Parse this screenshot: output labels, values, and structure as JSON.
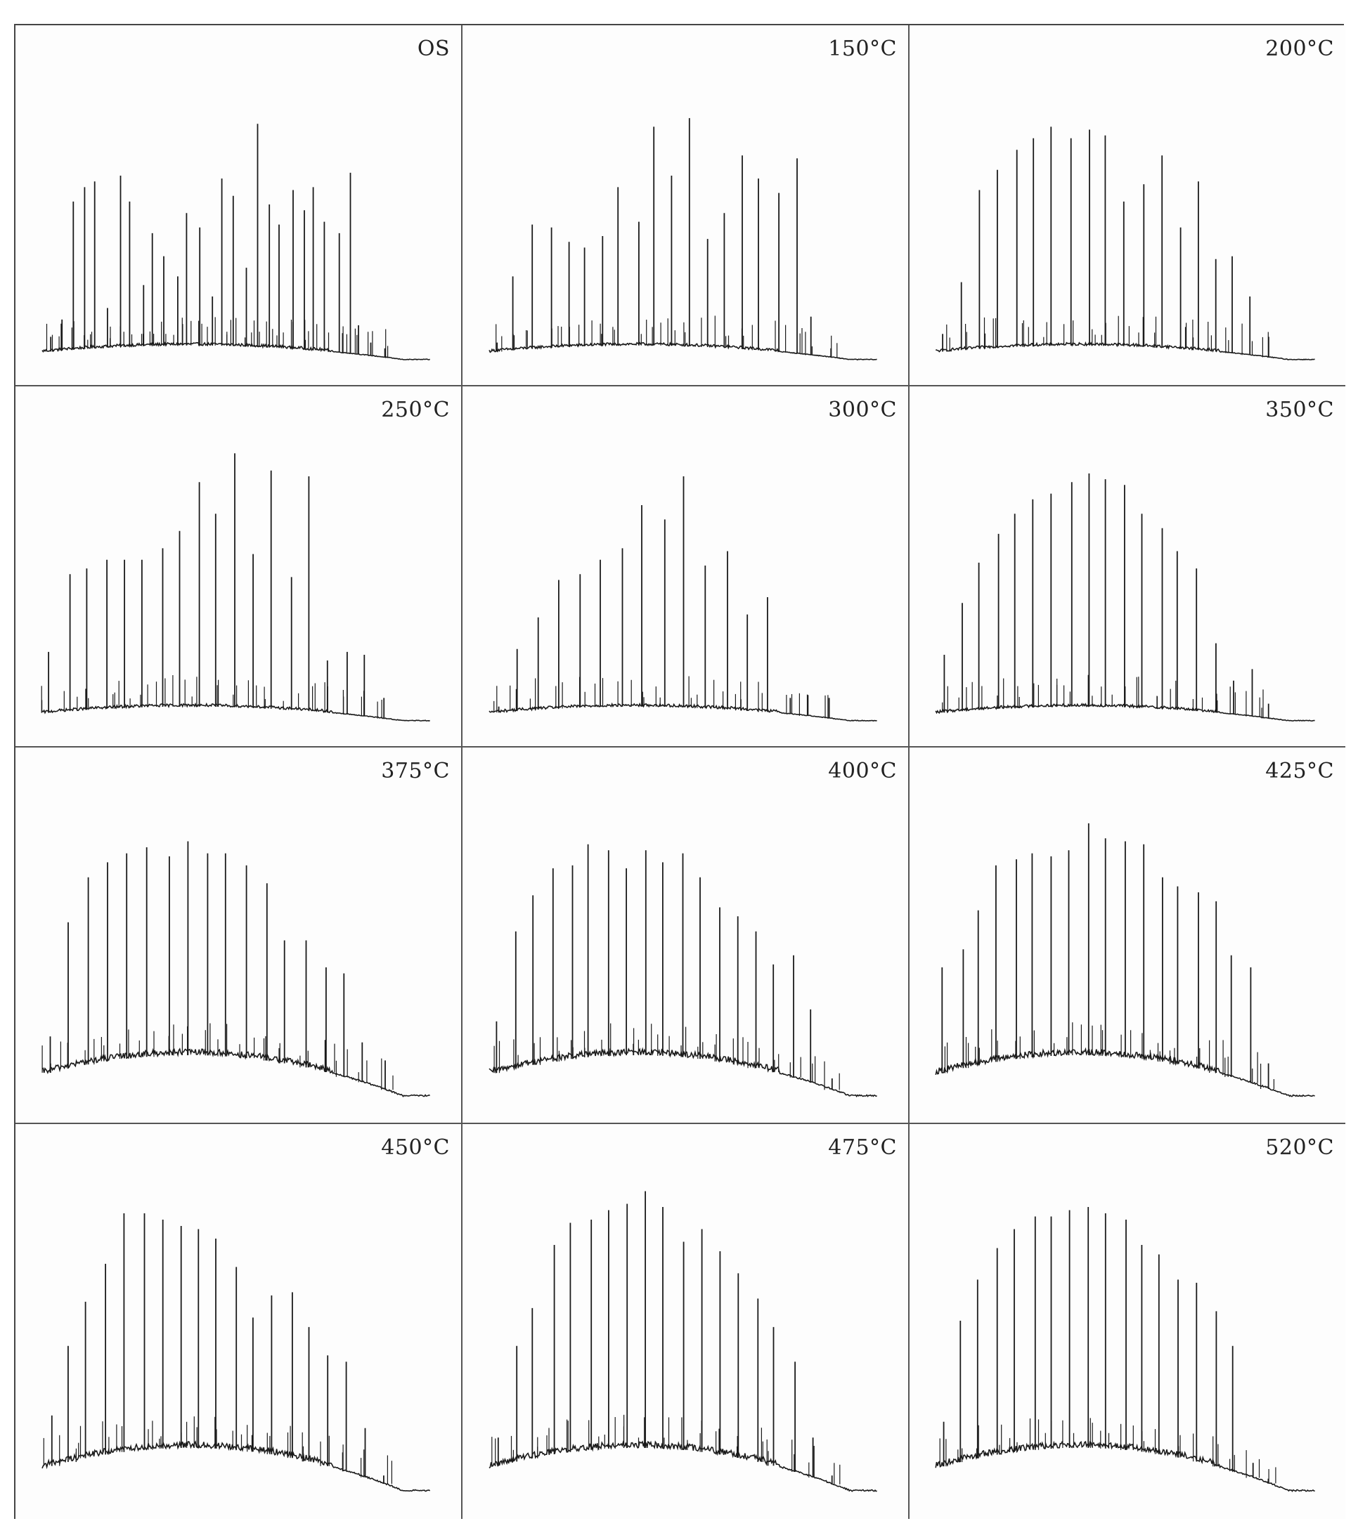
{
  "chart_data": [
    {
      "type": "line",
      "label": "OS",
      "peaks": [
        8,
        14,
        55,
        60,
        62,
        18,
        64,
        55,
        26,
        44,
        36,
        29,
        51,
        46,
        22,
        63,
        57,
        32,
        82,
        54,
        47,
        59,
        52,
        60,
        48,
        44,
        65,
        12,
        6,
        4
      ]
    },
    {
      "type": "line",
      "label": "150°C",
      "peaks": [
        6,
        29,
        47,
        46,
        41,
        39,
        43,
        60,
        48,
        81,
        64,
        84,
        42,
        51,
        71,
        63,
        58,
        70,
        15,
        4
      ]
    },
    {
      "type": "line",
      "label": "200°C",
      "peaks": [
        9,
        27,
        59,
        66,
        73,
        77,
        81,
        77,
        80,
        78,
        55,
        61,
        71,
        46,
        62,
        35,
        36,
        22,
        8
      ]
    },
    {
      "type": "line",
      "label": "250°C",
      "peaks": [
        24,
        51,
        53,
        56,
        56,
        56,
        60,
        66,
        83,
        72,
        93,
        58,
        87,
        50,
        85,
        21,
        24,
        23,
        8
      ]
    },
    {
      "type": "line",
      "label": "300°C",
      "peaks": [
        5,
        25,
        36,
        49,
        51,
        56,
        60,
        75,
        70,
        85,
        54,
        59,
        37,
        43,
        8,
        9,
        8
      ]
    },
    {
      "type": "line",
      "label": "350°C",
      "peaks": [
        23,
        41,
        55,
        65,
        72,
        77,
        79,
        83,
        86,
        84,
        82,
        72,
        67,
        59,
        53,
        27,
        14,
        18,
        6
      ]
    },
    {
      "type": "line",
      "label": "375°C",
      "peaks": [
        20,
        58,
        73,
        78,
        81,
        83,
        80,
        85,
        81,
        81,
        77,
        71,
        52,
        52,
        43,
        41,
        18,
        12
      ]
    },
    {
      "type": "line",
      "label": "400°C",
      "peaks": [
        25,
        55,
        67,
        76,
        77,
        84,
        82,
        76,
        82,
        78,
        81,
        73,
        63,
        60,
        55,
        44,
        47,
        29,
        6
      ]
    },
    {
      "type": "line",
      "label": "425°C",
      "peaks": [
        43,
        49,
        62,
        77,
        79,
        81,
        80,
        82,
        91,
        86,
        85,
        84,
        73,
        70,
        68,
        65,
        47,
        43,
        11
      ]
    },
    {
      "type": "line",
      "label": "450°C",
      "peaks": [
        24,
        46,
        60,
        72,
        88,
        88,
        86,
        84,
        83,
        80,
        71,
        55,
        62,
        63,
        52,
        43,
        41,
        20,
        5
      ]
    },
    {
      "type": "line",
      "label": "475°C",
      "peaks": [
        17,
        46,
        58,
        78,
        85,
        86,
        89,
        91,
        95,
        90,
        79,
        83,
        76,
        69,
        61,
        52,
        41,
        17,
        5
      ]
    },
    {
      "type": "line",
      "label": "520°C",
      "peaks": [
        22,
        54,
        67,
        77,
        83,
        87,
        87,
        89,
        90,
        88,
        86,
        78,
        75,
        67,
        66,
        57,
        46,
        9,
        4
      ]
    }
  ],
  "colors": {
    "trace": "#1a1a1a",
    "border": "#555555",
    "label": "#222222"
  }
}
